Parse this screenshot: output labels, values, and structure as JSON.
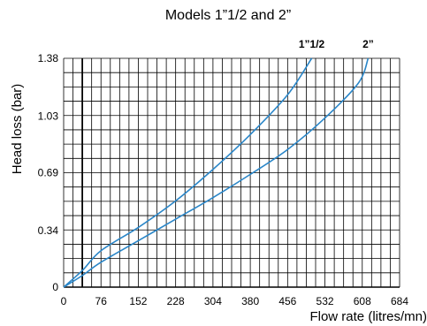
{
  "chart_data": {
    "type": "line",
    "title": "Models 1”1/2 and 2”",
    "xlabel": "Flow rate (litres/mn)",
    "ylabel": "Head loss (bar)",
    "x_ticks": [
      "0",
      "76",
      "152",
      "228",
      "304",
      "380",
      "456",
      "532",
      "608",
      "684"
    ],
    "y_ticks": [
      "0",
      "0.34",
      "0.69",
      "1.03",
      "1.38"
    ],
    "xlim": [
      0,
      684
    ],
    "ylim": [
      0,
      1.38
    ],
    "grid": true,
    "colors": {
      "series": "#2a86c8",
      "grid": "#000000"
    },
    "series": [
      {
        "name": "1”1/2",
        "x": [
          0,
          38,
          76,
          152,
          228,
          304,
          380,
          456,
          505
        ],
        "y": [
          0,
          0.1,
          0.22,
          0.36,
          0.52,
          0.71,
          0.92,
          1.16,
          1.38
        ]
      },
      {
        "name": "2”",
        "x": [
          0,
          38,
          76,
          152,
          228,
          304,
          380,
          456,
          532,
          600,
          620
        ],
        "y": [
          0,
          0.07,
          0.15,
          0.28,
          0.41,
          0.54,
          0.68,
          0.83,
          1.02,
          1.23,
          1.38
        ]
      }
    ]
  }
}
